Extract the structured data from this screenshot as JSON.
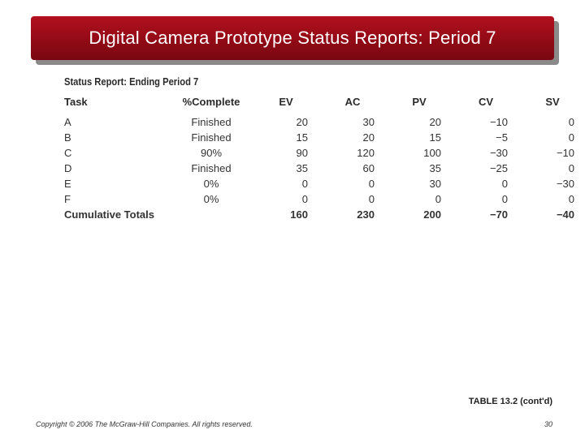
{
  "slide": {
    "title": "Digital Camera Prototype Status Reports: Period 7",
    "table_heading": "Status Report: Ending Period 7",
    "caption": "TABLE 13.2 (cont'd)",
    "copyright": "Copyright © 2006 The McGraw-Hill Companies. All rights reserved.",
    "page_number": "30"
  },
  "table": {
    "headers": [
      "Task",
      "%Complete",
      "EV",
      "AC",
      "PV",
      "CV",
      "SV"
    ],
    "rows": [
      [
        "A",
        "Finished",
        "20",
        "30",
        "20",
        "−10",
        "0"
      ],
      [
        "B",
        "Finished",
        "15",
        "20",
        "15",
        "−5",
        "0"
      ],
      [
        "C",
        "90%",
        "90",
        "120",
        "100",
        "−30",
        "−10"
      ],
      [
        "D",
        "Finished",
        "35",
        "60",
        "35",
        "−25",
        "0"
      ],
      [
        "E",
        "0%",
        "0",
        "0",
        "30",
        "0",
        "−30"
      ],
      [
        "F",
        "0%",
        "0",
        "0",
        "0",
        "0",
        "0"
      ]
    ],
    "totals": [
      "Cumulative Totals",
      "",
      "160",
      "230",
      "200",
      "−70",
      "−40"
    ]
  }
}
